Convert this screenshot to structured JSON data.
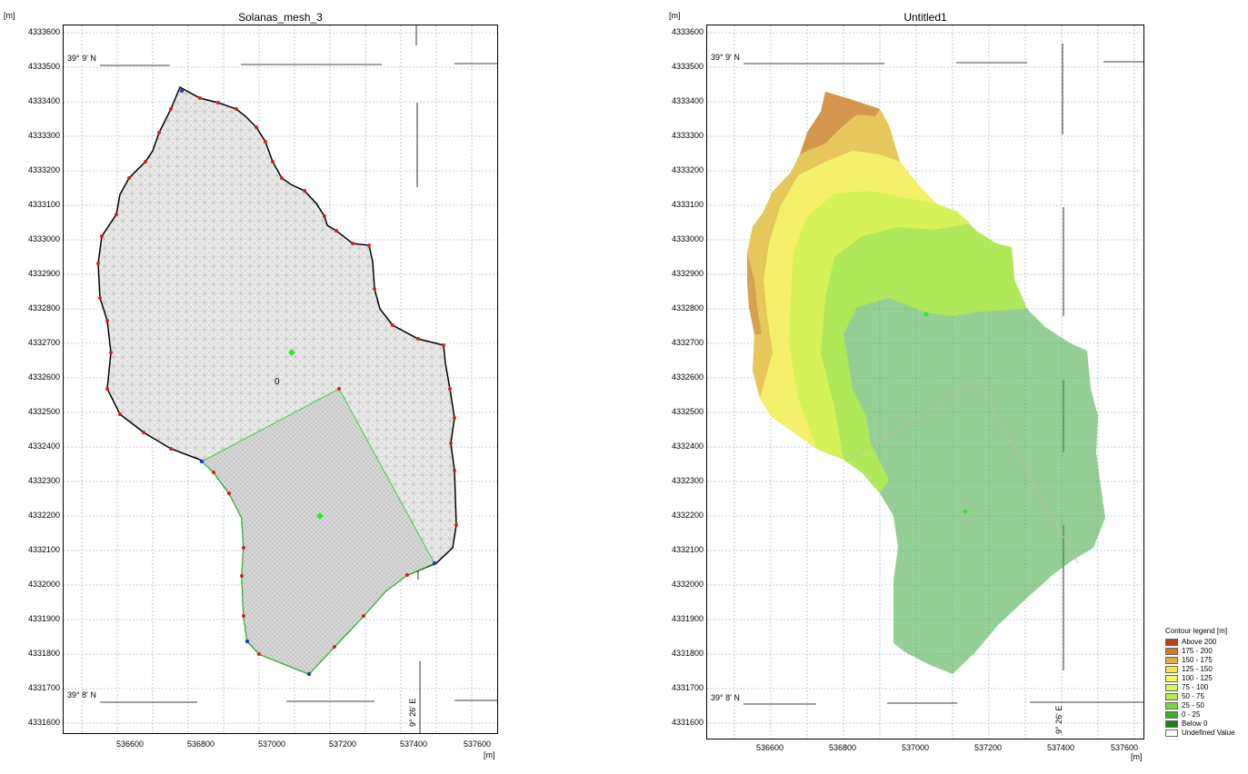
{
  "left": {
    "title": "Solanas_mesh_3",
    "unit_y": "[m]",
    "unit_x": "[m]",
    "y_ticks": [
      "4333600",
      "4333500",
      "4333400",
      "4333300",
      "4333200",
      "4333100",
      "4333000",
      "4332900",
      "4332800",
      "4332700",
      "4332600",
      "4332500",
      "4332400",
      "4332300",
      "4332200",
      "4332100",
      "4332000",
      "4331900",
      "4331800",
      "4331700",
      "4331600"
    ],
    "x_ticks": [
      "536600",
      "536800",
      "537000",
      "537200",
      "537400",
      "537600"
    ],
    "lat_top": "39° 9' N",
    "lat_bottom": "39° 8' N",
    "lon_label": "9° 26' E",
    "zone_label": "0"
  },
  "right": {
    "title": "Untitled1",
    "unit_y": "[m]",
    "unit_x": "[m]",
    "y_ticks": [
      "4333600",
      "4333500",
      "4333400",
      "4333300",
      "4333200",
      "4333100",
      "4333000",
      "4332900",
      "4332800",
      "4332700",
      "4332600",
      "4332500",
      "4332400",
      "4332300",
      "4332200",
      "4332100",
      "4332000",
      "4331900",
      "4331800",
      "4331700",
      "4331600"
    ],
    "x_ticks": [
      "536600",
      "536800",
      "537000",
      "537200",
      "537400",
      "537600"
    ],
    "lat_top": "39° 9' N",
    "lat_bottom": "39° 8' N",
    "lon_label": "9° 26' E"
  },
  "legend": {
    "title": "Contour legend [m]",
    "items": [
      {
        "label": "Above 200",
        "color": "#b5431c"
      },
      {
        "label": "175 - 200",
        "color": "#cf7a27"
      },
      {
        "label": "150 - 175",
        "color": "#e3b045"
      },
      {
        "label": "125 - 150",
        "color": "#f5e54a"
      },
      {
        "label": "100 - 125",
        "color": "#f2f564"
      },
      {
        "label": "75 - 100",
        "color": "#d9f45a"
      },
      {
        "label": "50 - 75",
        "color": "#b4ec4e"
      },
      {
        "label": "25 - 50",
        "color": "#7ed33e"
      },
      {
        "label": "0 - 25",
        "color": "#3fae2a"
      },
      {
        "label": "Below 0",
        "color": "#1f7f1a"
      },
      {
        "label": "Undefined Value",
        "color": "#ffffff"
      }
    ]
  }
}
